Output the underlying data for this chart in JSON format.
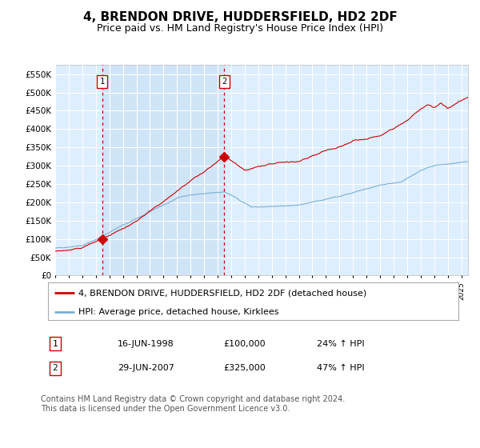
{
  "title": "4, BRENDON DRIVE, HUDDERSFIELD, HD2 2DF",
  "subtitle": "Price paid vs. HM Land Registry's House Price Index (HPI)",
  "title_fontsize": 11,
  "subtitle_fontsize": 9,
  "background_color": "#ffffff",
  "plot_bg_color": "#ddeeff",
  "grid_color": "#ffffff",
  "ylim": [
    0,
    575000
  ],
  "yticks": [
    0,
    50000,
    100000,
    150000,
    200000,
    250000,
    300000,
    350000,
    400000,
    450000,
    500000,
    550000
  ],
  "ytick_labels": [
    "£0",
    "£50K",
    "£100K",
    "£150K",
    "£200K",
    "£250K",
    "£300K",
    "£350K",
    "£400K",
    "£450K",
    "£500K",
    "£550K"
  ],
  "sale1_date_label": "16-JUN-1998",
  "sale1_price": 100000,
  "sale1_price_label": "£100,000",
  "sale1_hpi_label": "24% ↑ HPI",
  "sale1_x": 1998.46,
  "sale2_date_label": "29-JUN-2007",
  "sale2_price": 325000,
  "sale2_price_label": "£325,000",
  "sale2_hpi_label": "47% ↑ HPI",
  "sale2_x": 2007.49,
  "vline_color": "#cc0000",
  "marker_color": "#cc0000",
  "red_line_color": "#cc0000",
  "blue_line_color": "#7bafd4",
  "shade_color": "#d0e4f7",
  "legend_label_red": "4, BRENDON DRIVE, HUDDERSFIELD, HD2 2DF (detached house)",
  "legend_label_blue": "HPI: Average price, detached house, Kirklees",
  "footnote": "Contains HM Land Registry data © Crown copyright and database right 2024.\nThis data is licensed under the Open Government Licence v3.0.",
  "footnote_fontsize": 7,
  "xstart": 1995.0,
  "xend": 2025.5
}
